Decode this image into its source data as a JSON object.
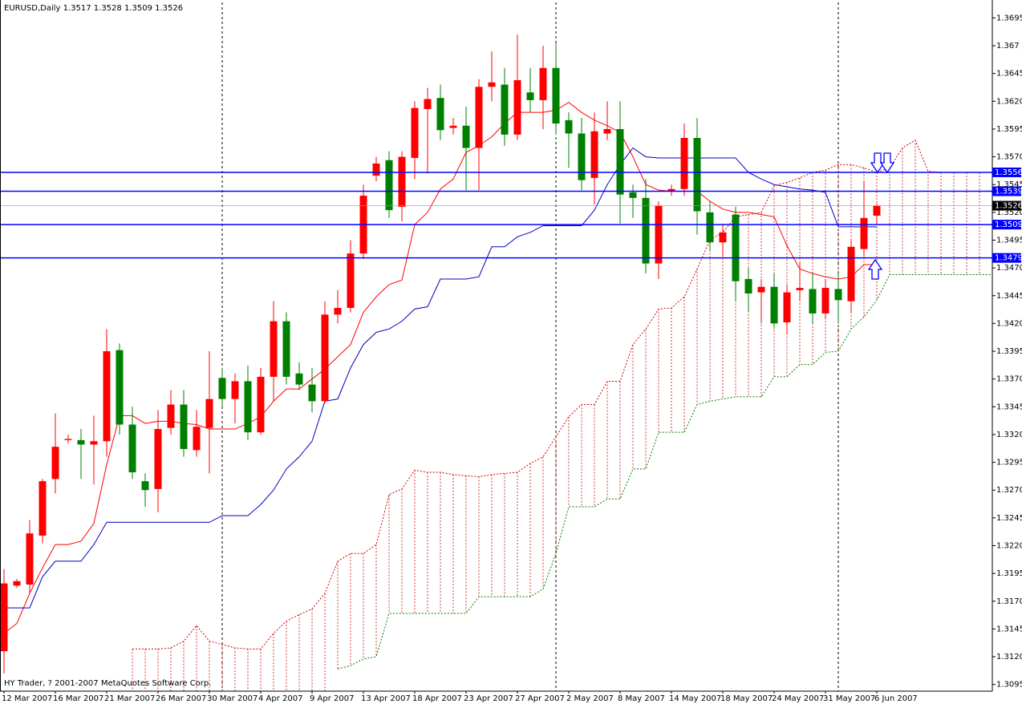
{
  "chart_data": {
    "type": "candlestick",
    "title": "EURUSD,Daily  1.3517 1.3528 1.3509 1.3526",
    "footer": "HY Trader, ? 2001-2007 MetaQuotes Software Corp.",
    "categories": [
      "12 Mar 2007",
      null,
      null,
      null,
      "16 Mar 2007",
      null,
      null,
      null,
      "21 Mar 2007",
      null,
      null,
      null,
      "26 Mar 2007",
      null,
      null,
      null,
      "30 Mar 2007",
      null,
      null,
      null,
      "4 Apr 2007",
      null,
      null,
      null,
      "9 Apr 2007",
      null,
      null,
      null,
      "13 Apr 2007",
      null,
      null,
      null,
      "18 Apr 2007",
      null,
      null,
      null,
      "23 Apr 2007",
      null,
      null,
      null,
      "27 Apr 2007",
      null,
      null,
      null,
      "2 May 2007",
      null,
      null,
      null,
      "8 May 2007",
      null,
      null,
      null,
      "14 May 2007",
      null,
      null,
      null,
      "18 May 2007",
      null,
      null,
      null,
      "24 May 2007",
      null,
      null,
      null,
      "31 May 2007",
      null,
      null,
      null,
      "6 Jun 2007",
      null,
      null,
      null,
      null,
      null,
      null,
      null,
      null,
      null
    ],
    "open": [
      1.3125,
      1.3184,
      1.3185,
      1.3229,
      1.328,
      1.3315,
      1.3315,
      1.3311,
      1.3314,
      1.3396,
      1.3329,
      1.3278,
      1.3271,
      1.3326,
      1.3347,
      1.3306,
      1.3326,
      1.3371,
      1.3352,
      1.3368,
      1.3322,
      1.3372,
      1.3422,
      1.3375,
      1.3365,
      1.335,
      1.3428,
      1.3434,
      1.3483,
      1.3553,
      1.3567,
      1.3525,
      1.3569,
      1.3613,
      1.3623,
      1.3596,
      1.3598,
      1.3578,
      1.3633,
      1.3635,
      1.359,
      1.3628,
      1.3621,
      1.365,
      1.3603,
      1.3591,
      1.3551,
      1.3591,
      1.3595,
      1.3538,
      1.3533,
      1.3474,
      1.3539,
      1.3541,
      1.3587,
      1.352,
      1.3493,
      1.3518,
      1.346,
      1.3448,
      1.3453,
      1.3421,
      1.345,
      1.3451,
      1.3429,
      1.3451,
      1.344,
      1.3487,
      1.3517,
      null,
      null,
      null,
      null,
      null,
      null,
      null,
      null,
      null
    ],
    "high": [
      1.3199,
      1.319,
      1.3243,
      1.328,
      1.3339,
      1.332,
      1.3325,
      1.3337,
      1.3415,
      1.3402,
      1.3345,
      1.3285,
      1.3342,
      1.336,
      1.336,
      1.3342,
      1.3395,
      1.338,
      1.3375,
      1.3382,
      1.338,
      1.344,
      1.343,
      1.3385,
      1.338,
      1.344,
      1.345,
      1.3495,
      1.3545,
      1.357,
      1.3575,
      1.3575,
      1.362,
      1.3632,
      1.3635,
      1.3605,
      1.3615,
      1.364,
      1.3665,
      1.365,
      1.368,
      1.365,
      1.367,
      1.3672,
      1.361,
      1.3605,
      1.361,
      1.362,
      1.362,
      1.3545,
      1.355,
      1.353,
      1.3545,
      1.36,
      1.3605,
      1.353,
      1.351,
      1.3525,
      1.347,
      1.346,
      1.3465,
      1.3455,
      1.3475,
      1.3465,
      1.346,
      1.3465,
      1.3495,
      1.3548,
      1.3528,
      null,
      null,
      null,
      null,
      null,
      null,
      null,
      null,
      null
    ],
    "low": [
      1.3105,
      1.3182,
      1.3177,
      1.3222,
      1.3267,
      1.3312,
      1.328,
      1.3275,
      1.33,
      1.332,
      1.328,
      1.3255,
      1.325,
      1.332,
      1.33,
      1.33,
      1.3285,
      1.3345,
      1.333,
      1.3315,
      1.332,
      1.335,
      1.3365,
      1.336,
      1.334,
      1.3348,
      1.342,
      1.343,
      1.3478,
      1.3548,
      1.3515,
      1.3512,
      1.355,
      1.3555,
      1.3585,
      1.359,
      1.354,
      1.354,
      1.362,
      1.358,
      1.3585,
      1.361,
      1.3595,
      1.359,
      1.356,
      1.354,
      1.3527,
      1.3585,
      1.351,
      1.3515,
      1.3465,
      1.346,
      1.3535,
      1.3535,
      1.35,
      1.3485,
      1.348,
      1.344,
      1.343,
      1.342,
      1.3415,
      1.341,
      1.344,
      1.342,
      1.3425,
      1.342,
      1.343,
      1.348,
      1.3509,
      null,
      null,
      null,
      null,
      null,
      null,
      null,
      null,
      null
    ],
    "close": [
      1.3186,
      1.3188,
      1.3231,
      1.3278,
      1.3309,
      1.3316,
      1.3311,
      1.3314,
      1.3395,
      1.3329,
      1.3286,
      1.327,
      1.3325,
      1.3347,
      1.3307,
      1.3327,
      1.3352,
      1.3352,
      1.3368,
      1.3322,
      1.3372,
      1.3422,
      1.3372,
      1.3365,
      1.335,
      1.3428,
      1.3434,
      1.3483,
      1.3535,
      1.3564,
      1.3522,
      1.357,
      1.3614,
      1.3622,
      1.3594,
      1.3598,
      1.3578,
      1.3633,
      1.3637,
      1.359,
      1.3639,
      1.3621,
      1.365,
      1.36,
      1.3591,
      1.3549,
      1.3593,
      1.3595,
      1.3536,
      1.3533,
      1.3474,
      1.3526,
      1.3541,
      1.3587,
      1.3521,
      1.3493,
      1.3502,
      1.3458,
      1.3447,
      1.3453,
      1.342,
      1.3448,
      1.3452,
      1.3429,
      1.3452,
      1.3441,
      1.3489,
      1.3515,
      1.3526,
      null,
      null,
      null,
      null,
      null,
      null,
      null,
      null,
      null
    ],
    "up_color": "#ff0000",
    "down_color": "#008000",
    "series": [
      {
        "color": "#ff0000",
        "style": "solid",
        "values": [
          1.3141,
          1.315,
          1.3177,
          1.32,
          1.3221,
          1.3221,
          1.3224,
          1.324,
          1.3293,
          1.3337,
          1.3337,
          1.333,
          1.3332,
          1.3332,
          1.333,
          1.3329,
          1.3325,
          1.3325,
          1.3325,
          1.333,
          1.3336,
          1.335,
          1.3361,
          1.3361,
          1.337,
          1.3379,
          1.339,
          1.3401,
          1.343,
          1.3444,
          1.3455,
          1.3459,
          1.3509,
          1.352,
          1.3541,
          1.355,
          1.3574,
          1.358,
          1.3588,
          1.36,
          1.361,
          1.361,
          1.361,
          1.3612,
          1.3619,
          1.361,
          1.3603,
          1.3598,
          1.3592,
          1.357,
          1.3545,
          1.354,
          1.3539,
          1.3539,
          1.3539,
          1.353,
          1.3523,
          1.352,
          1.352,
          1.3518,
          1.3516,
          1.349,
          1.3469,
          1.3465,
          1.3462,
          1.346,
          1.3462,
          1.3473,
          1.3473,
          null,
          null,
          null,
          null,
          null,
          null,
          null,
          null,
          null
        ]
      },
      {
        "color": "#0000c0",
        "style": "solid",
        "values": [
          1.3164,
          1.3164,
          1.3164,
          1.3192,
          1.3206,
          1.3206,
          1.3206,
          1.3221,
          1.3241,
          1.3241,
          1.3241,
          1.3241,
          1.3241,
          1.3241,
          1.3241,
          1.3241,
          1.3241,
          1.3247,
          1.3247,
          1.3247,
          1.3257,
          1.327,
          1.3289,
          1.33,
          1.3314,
          1.335,
          1.3352,
          1.338,
          1.3401,
          1.3412,
          1.3415,
          1.3422,
          1.3433,
          1.3435,
          1.346,
          1.346,
          1.346,
          1.3462,
          1.3489,
          1.3489,
          1.3498,
          1.3502,
          1.3508,
          1.3508,
          1.3508,
          1.3508,
          1.3522,
          1.3545,
          1.3563,
          1.3578,
          1.357,
          1.3569,
          1.3569,
          1.3569,
          1.3569,
          1.3569,
          1.3569,
          1.3569,
          1.3556,
          1.355,
          1.3545,
          1.3543,
          1.3541,
          1.354,
          1.3538,
          1.3507,
          1.3507,
          1.3507,
          1.3507,
          null,
          null,
          null,
          null,
          null,
          null,
          null,
          null,
          null
        ]
      },
      {
        "color": "#d00000",
        "style": "dotted",
        "values": [
          null,
          null,
          null,
          null,
          null,
          null,
          null,
          null,
          null,
          null,
          1.3127,
          1.3127,
          1.3127,
          1.3128,
          1.3134,
          1.3148,
          1.3134,
          1.3131,
          1.3128,
          1.3127,
          1.3127,
          1.3141,
          1.3152,
          1.3158,
          1.3163,
          1.3177,
          1.3206,
          1.3213,
          1.3213,
          1.3221,
          1.3266,
          1.3271,
          1.3288,
          1.3286,
          1.3286,
          1.3284,
          1.3283,
          1.3282,
          1.3284,
          1.3285,
          1.3286,
          1.3294,
          1.33,
          1.3318,
          1.3336,
          1.3347,
          1.3347,
          1.3368,
          1.3368,
          1.3401,
          1.3415,
          1.3433,
          1.3434,
          1.3444,
          1.3469,
          1.3495,
          1.3502,
          1.3516,
          1.3518,
          1.352,
          1.3544,
          1.3547,
          1.3551,
          1.3556,
          1.3558,
          1.3563,
          1.3563,
          1.356,
          1.3556,
          1.356,
          1.3578,
          1.3585,
          1.3557,
          1.3556,
          1.3556,
          1.3556,
          1.3556,
          1.3556
        ]
      },
      {
        "color": "#008000",
        "style": "dotted",
        "values": [
          null,
          null,
          null,
          null,
          null,
          null,
          null,
          null,
          null,
          null,
          null,
          null,
          null,
          null,
          null,
          null,
          null,
          null,
          null,
          null,
          null,
          null,
          null,
          null,
          null,
          null,
          1.3109,
          1.3112,
          1.3118,
          1.312,
          1.3159,
          1.3159,
          1.3159,
          1.3159,
          1.3159,
          1.3159,
          1.3159,
          1.3174,
          1.3174,
          1.3174,
          1.3174,
          1.3174,
          1.3181,
          1.3213,
          1.3255,
          1.3255,
          1.3255,
          1.3262,
          1.3262,
          1.3289,
          1.3289,
          1.3322,
          1.3322,
          1.3322,
          1.3347,
          1.335,
          1.3352,
          1.3354,
          1.3354,
          1.3354,
          1.3372,
          1.3372,
          1.3383,
          1.3383,
          1.3394,
          1.3395,
          1.3415,
          1.3426,
          1.3441,
          1.3464,
          1.3464,
          1.3464,
          1.3464,
          1.3464,
          1.3464,
          1.3464,
          1.3464,
          1.3464
        ]
      }
    ],
    "levels": [
      {
        "value": 1.3556,
        "color": "#0000ff"
      },
      {
        "value": 1.3539,
        "color": "#0000ff"
      },
      {
        "value": 1.3509,
        "color": "#0000ff"
      },
      {
        "value": 1.3479,
        "color": "#0000ff"
      }
    ],
    "last_price": 1.3526,
    "ylim": [
      1.3089,
      1.3709
    ],
    "yticks": [
      1.3695,
      1.367,
      1.3645,
      {
        "value": 1.362,
        "label": "1.3620"
      },
      1.3595,
      {
        "value": 1.357,
        "label": "1.3570"
      },
      1.3545,
      {
        "value": 1.352,
        "label": "1.3520"
      },
      1.3495,
      {
        "value": 1.347,
        "label": "1.3470"
      },
      1.3445,
      {
        "value": 1.342,
        "label": "1.3420"
      },
      1.3395,
      {
        "value": 1.337,
        "label": "1.3370"
      },
      1.3345,
      {
        "value": 1.332,
        "label": "1.3320"
      },
      1.3295,
      {
        "value": 1.327,
        "label": "1.3270"
      },
      1.3245,
      {
        "value": 1.322,
        "label": "1.3220"
      },
      1.3195,
      {
        "value": 1.317,
        "label": "1.3170"
      },
      1.3145,
      {
        "value": 1.312,
        "label": "1.3120"
      },
      1.3095
    ]
  }
}
